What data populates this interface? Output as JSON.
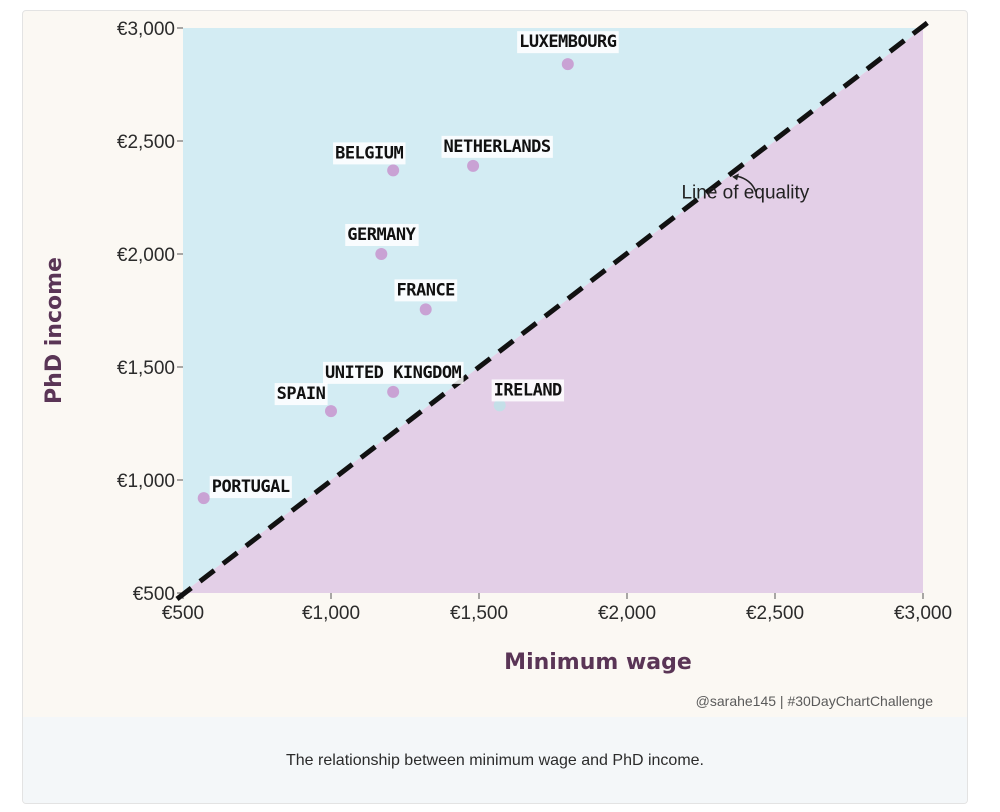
{
  "chart_data": {
    "type": "scatter",
    "title": "",
    "xlabel": "Minimum wage",
    "ylabel": "PhD income",
    "xlim": [
      500,
      3000
    ],
    "ylim": [
      500,
      3000
    ],
    "x_ticks": [
      500,
      1000,
      1500,
      2000,
      2500,
      3000
    ],
    "y_ticks": [
      500,
      1000,
      1500,
      2000,
      2500,
      3000
    ],
    "x_tick_labels": [
      "€500",
      "€1,000",
      "€1,500",
      "€2,000",
      "€2,500",
      "€3,000"
    ],
    "y_tick_labels": [
      "€500",
      "€1,000",
      "€1,500",
      "€2,000",
      "€2,500",
      "€3,000"
    ],
    "grid": false,
    "legend": "none",
    "reference_line": {
      "label": "Line of equality",
      "from": [
        500,
        500
      ],
      "to": [
        3000,
        3000
      ],
      "style": "dashed"
    },
    "colors": {
      "above_region": "#d3ecf3",
      "below_region": "#e3cfe7",
      "point_above": "#c9a2d4",
      "point_below": "#c4dfe8",
      "axis_title": "#5a3556",
      "line": "#111111"
    },
    "points": [
      {
        "label": "LUXEMBOURG",
        "x": 1800,
        "y": 2840
      },
      {
        "label": "BELGIUM",
        "x": 1210,
        "y": 2370
      },
      {
        "label": "NETHERLANDS",
        "x": 1480,
        "y": 2390
      },
      {
        "label": "GERMANY",
        "x": 1170,
        "y": 2000
      },
      {
        "label": "FRANCE",
        "x": 1320,
        "y": 1755
      },
      {
        "label": "UNITED KINGDOM",
        "x": 1210,
        "y": 1390
      },
      {
        "label": "SPAIN",
        "x": 1000,
        "y": 1305
      },
      {
        "label": "IRELAND",
        "x": 1570,
        "y": 1330
      },
      {
        "label": "PORTUGAL",
        "x": 570,
        "y": 920
      }
    ]
  },
  "credit": "@sarahe145 | #30DayChartChallenge",
  "caption": "The relationship between minimum wage and PhD income."
}
